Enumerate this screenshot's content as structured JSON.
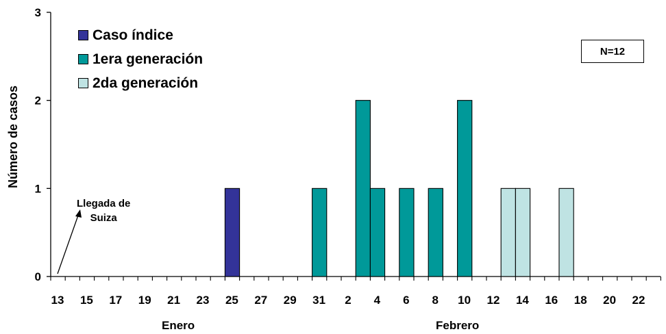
{
  "chart_data": {
    "type": "bar",
    "ylabel": "Número de casos",
    "ylim": [
      0,
      3
    ],
    "yticks": [
      "0",
      "1",
      "2",
      "3"
    ],
    "x_day_labels": [
      "13",
      "15",
      "17",
      "19",
      "21",
      "23",
      "25",
      "27",
      "29",
      "31",
      "2",
      "4",
      "6",
      "8",
      "10",
      "12",
      "14",
      "16",
      "18",
      "20",
      "22"
    ],
    "month_labels": [
      "Enero",
      "Febrero"
    ],
    "series": [
      {
        "name": "Caso índice",
        "color": "#333399",
        "bars": [
          {
            "day": "25 ene",
            "value": 1
          }
        ]
      },
      {
        "name": "1era generación",
        "color": "#009999",
        "bars": [
          {
            "day": "31 ene",
            "value": 1
          },
          {
            "day": "3 feb",
            "value": 2
          },
          {
            "day": "4 feb",
            "value": 1
          },
          {
            "day": "6 feb",
            "value": 1
          },
          {
            "day": "8 feb",
            "value": 1
          },
          {
            "day": "10 feb",
            "value": 2
          }
        ]
      },
      {
        "name": "2da generación",
        "color": "#bfe3e3",
        "bars": [
          {
            "day": "13 feb",
            "value": 1
          },
          {
            "day": "14 feb",
            "value": 1
          },
          {
            "day": "17 feb",
            "value": 1
          }
        ]
      }
    ],
    "annotation_box": "N=12",
    "annotation_note_lines": [
      "Llegada de",
      "Suiza"
    ],
    "legend_position": "top-left"
  }
}
